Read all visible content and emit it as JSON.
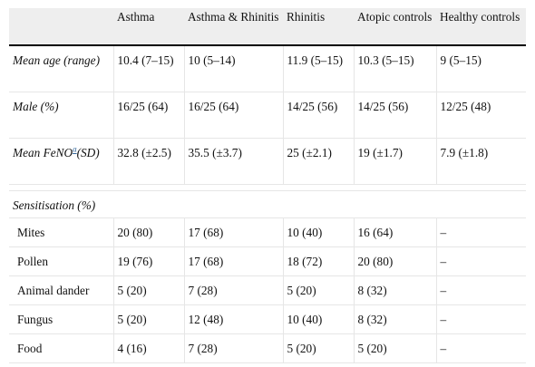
{
  "columns": [
    "",
    "Asthma",
    "Asthma & Rhinitis",
    "Rhinitis",
    "Atopic controls",
    "Healthy controls"
  ],
  "rows": {
    "mean_age": {
      "label": "Mean age (range)",
      "values": [
        "10.4 (7–15)",
        "10 (5–14)",
        "11.9 (5–15)",
        "10.3 (5–15)",
        "9 (5–15)"
      ]
    },
    "male": {
      "label": "Male (%)",
      "values": [
        "16/25 (64)",
        "16/25 (64)",
        "14/25 (56)",
        "14/25 (56)",
        "12/25 (48)"
      ]
    },
    "feno": {
      "label_pre": "Mean FeNO",
      "label_sup": "a",
      "label_post": "(SD)",
      "values": [
        "32.8 (±2.5)",
        "35.5 (±3.7)",
        "25 (±2.1)",
        "19 (±1.7)",
        "7.9 (±1.8)"
      ]
    }
  },
  "sensitisation": {
    "title": "Sensitisation (%)",
    "items": [
      {
        "label": "Mites",
        "values": [
          "20 (80)",
          "17 (68)",
          "10 (40)",
          "16 (64)",
          "–"
        ]
      },
      {
        "label": "Pollen",
        "values": [
          "19 (76)",
          "17 (68)",
          "18 (72)",
          "20 (80)",
          "–"
        ]
      },
      {
        "label": "Animal dander",
        "values": [
          "5 (20)",
          "7 (28)",
          "5 (20)",
          "8 (32)",
          "–"
        ]
      },
      {
        "label": "Fungus",
        "values": [
          "5 (20)",
          "12 (48)",
          "10 (40)",
          "8 (32)",
          "–"
        ]
      },
      {
        "label": "Food",
        "values": [
          "4 (16)",
          "7 (28)",
          "5 (20)",
          "5 (20)",
          "–"
        ]
      }
    ]
  }
}
